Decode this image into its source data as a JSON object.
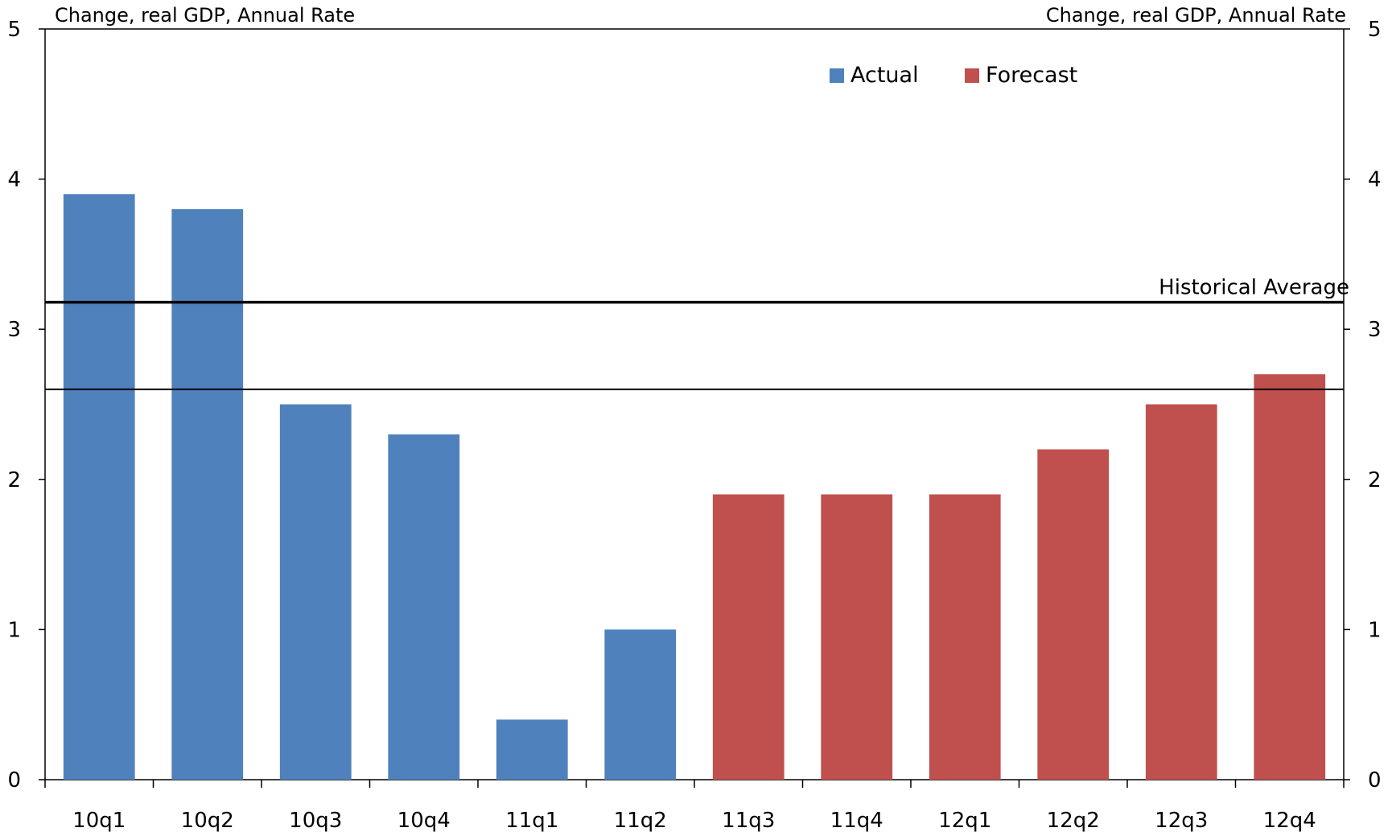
{
  "chart_data": {
    "type": "bar",
    "title_left": "Change, real GDP, Annual Rate",
    "title_right": "Change, real GDP, Annual Rate",
    "categories": [
      "10q1",
      "10q2",
      "10q3",
      "10q4",
      "11q1",
      "11q2",
      "11q3",
      "11q4",
      "12q1",
      "12q2",
      "12q3",
      "12q4"
    ],
    "series": [
      {
        "name": "Actual",
        "color": "#4F81BD",
        "values": [
          3.9,
          3.8,
          2.5,
          2.3,
          0.4,
          1.0,
          null,
          null,
          null,
          null,
          null,
          null
        ]
      },
      {
        "name": "Forecast",
        "color": "#C0504D",
        "values": [
          null,
          null,
          null,
          null,
          null,
          null,
          1.9,
          1.9,
          1.9,
          2.2,
          2.5,
          2.7
        ]
      }
    ],
    "reference_lines": [
      {
        "label": "Historical Average",
        "value": 3.18,
        "weight": "thick"
      },
      {
        "label": "",
        "value": 2.6,
        "weight": "thin"
      }
    ],
    "ylim": [
      0,
      5
    ],
    "yticks": [
      0,
      1,
      2,
      3,
      4,
      5
    ],
    "y_axis": "both sides",
    "grid": false,
    "legend": "top-right"
  }
}
